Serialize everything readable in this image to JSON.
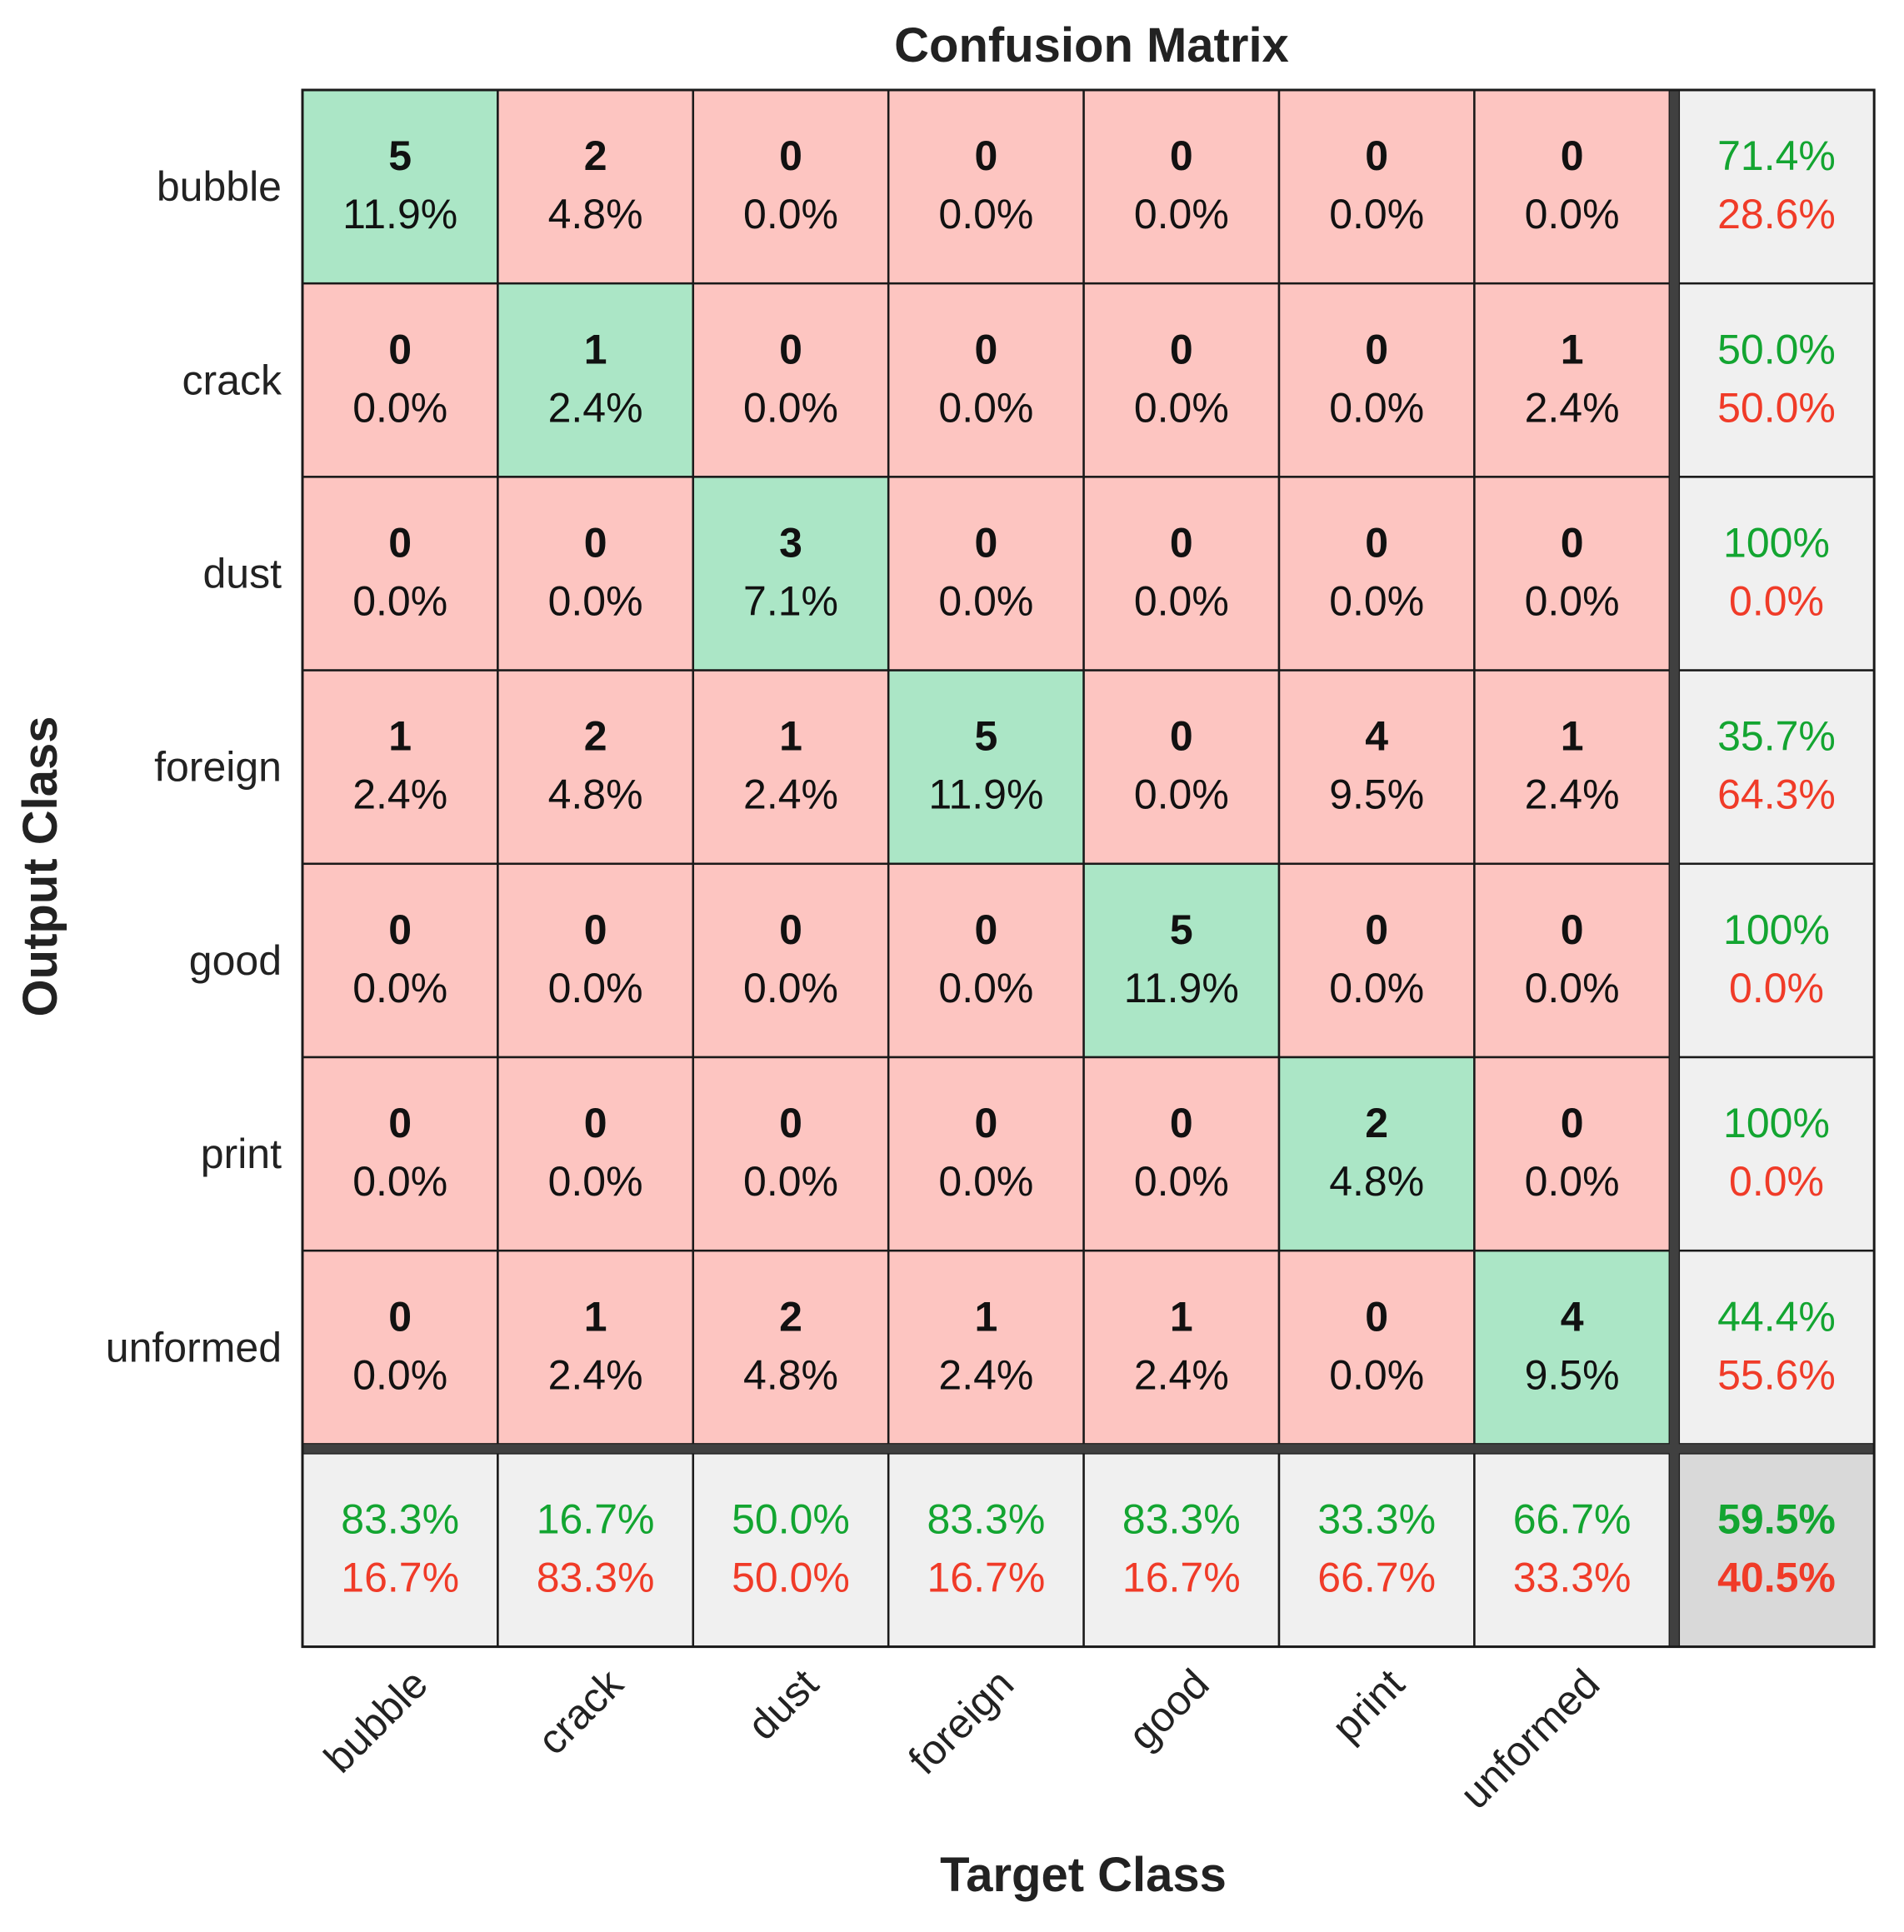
{
  "chart_data": {
    "type": "heatmap",
    "title": "Confusion Matrix",
    "xlabel": "Target Class",
    "ylabel": "Output Class",
    "classes": [
      "bubble",
      "crack",
      "dust",
      "foreign",
      "good",
      "print",
      "unformed"
    ],
    "counts": [
      [
        5,
        2,
        0,
        0,
        0,
        0,
        0
      ],
      [
        0,
        1,
        0,
        0,
        0,
        0,
        1
      ],
      [
        0,
        0,
        3,
        0,
        0,
        0,
        0
      ],
      [
        1,
        2,
        1,
        5,
        0,
        4,
        1
      ],
      [
        0,
        0,
        0,
        0,
        5,
        0,
        0
      ],
      [
        0,
        0,
        0,
        0,
        0,
        2,
        0
      ],
      [
        0,
        1,
        2,
        1,
        1,
        0,
        4
      ]
    ],
    "percents": [
      [
        "11.9%",
        "4.8%",
        "0.0%",
        "0.0%",
        "0.0%",
        "0.0%",
        "0.0%"
      ],
      [
        "0.0%",
        "2.4%",
        "0.0%",
        "0.0%",
        "0.0%",
        "0.0%",
        "2.4%"
      ],
      [
        "0.0%",
        "0.0%",
        "7.1%",
        "0.0%",
        "0.0%",
        "0.0%",
        "0.0%"
      ],
      [
        "2.4%",
        "4.8%",
        "2.4%",
        "11.9%",
        "0.0%",
        "9.5%",
        "2.4%"
      ],
      [
        "0.0%",
        "0.0%",
        "0.0%",
        "0.0%",
        "11.9%",
        "0.0%",
        "0.0%"
      ],
      [
        "0.0%",
        "0.0%",
        "0.0%",
        "0.0%",
        "0.0%",
        "4.8%",
        "0.0%"
      ],
      [
        "0.0%",
        "2.4%",
        "4.8%",
        "2.4%",
        "2.4%",
        "0.0%",
        "9.5%"
      ]
    ],
    "row_summary": [
      [
        "71.4%",
        "28.6%"
      ],
      [
        "50.0%",
        "50.0%"
      ],
      [
        "100%",
        "0.0%"
      ],
      [
        "35.7%",
        "64.3%"
      ],
      [
        "100%",
        "0.0%"
      ],
      [
        "100%",
        "0.0%"
      ],
      [
        "44.4%",
        "55.6%"
      ]
    ],
    "col_summary": [
      [
        "83.3%",
        "16.7%"
      ],
      [
        "16.7%",
        "83.3%"
      ],
      [
        "50.0%",
        "50.0%"
      ],
      [
        "83.3%",
        "16.7%"
      ],
      [
        "83.3%",
        "16.7%"
      ],
      [
        "33.3%",
        "66.7%"
      ],
      [
        "66.7%",
        "33.3%"
      ]
    ],
    "overall": [
      "59.5%",
      "40.5%"
    ],
    "colors": {
      "correct": "#abe6c6",
      "incorrect": "#fdc5c1",
      "summary": "#f0f0f0",
      "overall": "#d9d9d9",
      "green_text": "#13a531",
      "red_text": "#f03b28",
      "grid": "#1a1a1a",
      "separator": "#404040"
    }
  }
}
